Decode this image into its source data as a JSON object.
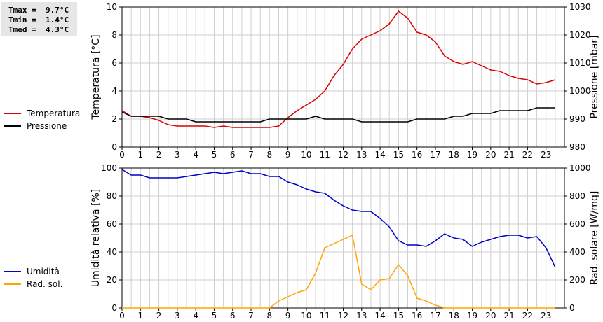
{
  "stats": {
    "tmax": "Tmax =  9.7°C",
    "tmin": "Tmin =  1.4°C",
    "tmed": "Tmed =  4.3°C"
  },
  "colors": {
    "temperature": "#dd0000",
    "pressure": "#000000",
    "humidity": "#0000cc",
    "radiation": "#ffa500",
    "grid": "#cfcfcf",
    "background": "#ffffff"
  },
  "chart_data": [
    {
      "type": "line",
      "x": [
        0,
        0.5,
        1,
        1.5,
        2,
        2.5,
        3,
        3.5,
        4,
        4.5,
        5,
        5.5,
        6,
        6.5,
        7,
        7.5,
        8,
        8.5,
        9,
        9.5,
        10,
        10.5,
        11,
        11.5,
        12,
        12.5,
        13,
        13.5,
        14,
        14.5,
        15,
        15.5,
        16,
        16.5,
        17,
        17.5,
        18,
        18.5,
        19,
        19.5,
        20,
        20.5,
        21,
        21.5,
        22,
        22.5,
        23,
        23.5
      ],
      "xlim": [
        0,
        24
      ],
      "xticks": [
        "0",
        "1",
        "2",
        "3",
        "4",
        "5",
        "6",
        "7",
        "8",
        "9",
        "10",
        "11",
        "12",
        "13",
        "14",
        "15",
        "16",
        "17",
        "18",
        "19",
        "20",
        "21",
        "22",
        "23"
      ],
      "ylabel": "Temperatura [°C]",
      "ylim": [
        0,
        10
      ],
      "yticks": [
        "0",
        "2",
        "4",
        "6",
        "8",
        "10"
      ],
      "y2label": "Pressione [mbar]",
      "y2lim": [
        980,
        1030
      ],
      "y2ticks": [
        "980",
        "990",
        "1000",
        "1010",
        "1020",
        "1030"
      ],
      "grid": true,
      "legend": "left",
      "series": [
        {
          "name": "Temperatura",
          "axis": "left",
          "values": [
            2.6,
            2.2,
            2.2,
            2.1,
            1.9,
            1.6,
            1.5,
            1.5,
            1.5,
            1.5,
            1.4,
            1.5,
            1.4,
            1.4,
            1.4,
            1.4,
            1.4,
            1.5,
            2.1,
            2.6,
            3.0,
            3.4,
            4.0,
            5.1,
            5.9,
            7.0,
            7.7,
            8.0,
            8.3,
            8.8,
            9.7,
            9.2,
            8.2,
            8.0,
            7.5,
            6.5,
            6.1,
            5.9,
            6.1,
            5.8,
            5.5,
            5.4,
            5.1,
            4.9,
            4.8,
            4.5,
            4.6,
            4.8
          ]
        },
        {
          "name": "Pressione",
          "axis": "right",
          "values": [
            992.5,
            991,
            991,
            991,
            991,
            990,
            990,
            990,
            989,
            989,
            989,
            989,
            989,
            989,
            989,
            989,
            990,
            990,
            990,
            990,
            990,
            991,
            990,
            990,
            990,
            990,
            989,
            989,
            989,
            989,
            989,
            989,
            990,
            990,
            990,
            990,
            991,
            991,
            992,
            992,
            992,
            993,
            993,
            993,
            993,
            994,
            994,
            994
          ]
        }
      ]
    },
    {
      "type": "line",
      "x": [
        0,
        0.5,
        1,
        1.5,
        2,
        2.5,
        3,
        3.5,
        4,
        4.5,
        5,
        5.5,
        6,
        6.5,
        7,
        7.5,
        8,
        8.5,
        9,
        9.5,
        10,
        10.5,
        11,
        11.5,
        12,
        12.5,
        13,
        13.5,
        14,
        14.5,
        15,
        15.5,
        16,
        16.5,
        17,
        17.5,
        18,
        18.5,
        19,
        19.5,
        20,
        20.5,
        21,
        21.5,
        22,
        22.5,
        23,
        23.5
      ],
      "xlim": [
        0,
        24
      ],
      "xticks": [
        "0",
        "1",
        "2",
        "3",
        "4",
        "5",
        "6",
        "7",
        "8",
        "9",
        "10",
        "11",
        "12",
        "13",
        "14",
        "15",
        "16",
        "17",
        "18",
        "19",
        "20",
        "21",
        "22",
        "23"
      ],
      "ylabel": "Umidità relativa [%]",
      "ylim": [
        0,
        100
      ],
      "yticks": [
        "0",
        "20",
        "40",
        "60",
        "80",
        "100"
      ],
      "y2label": "Rad. solare [W/mq]",
      "y2lim": [
        0,
        1000
      ],
      "y2ticks": [
        "0",
        "200",
        "400",
        "600",
        "800",
        "1000"
      ],
      "grid": true,
      "legend": "left",
      "series": [
        {
          "name": "Umidità",
          "axis": "left",
          "values": [
            99,
            95,
            95,
            93,
            93,
            93,
            93,
            94,
            95,
            96,
            97,
            96,
            97,
            98,
            96,
            96,
            94,
            94,
            90,
            88,
            85,
            83,
            82,
            77,
            73,
            70,
            69,
            69,
            64,
            58,
            48,
            45,
            45,
            44,
            48,
            53,
            50,
            49,
            44,
            47,
            49,
            51,
            52,
            52,
            50,
            51,
            43,
            29
          ]
        },
        {
          "name": "Rad. sol.",
          "axis": "right",
          "values": [
            0,
            0,
            0,
            0,
            0,
            0,
            0,
            0,
            0,
            0,
            0,
            0,
            0,
            0,
            0,
            0,
            0,
            50,
            80,
            110,
            130,
            250,
            430,
            460,
            490,
            520,
            170,
            130,
            200,
            210,
            310,
            230,
            70,
            50,
            20,
            0,
            0,
            0,
            0,
            0,
            0,
            0,
            0,
            0,
            0,
            0,
            0,
            0
          ]
        }
      ]
    }
  ]
}
